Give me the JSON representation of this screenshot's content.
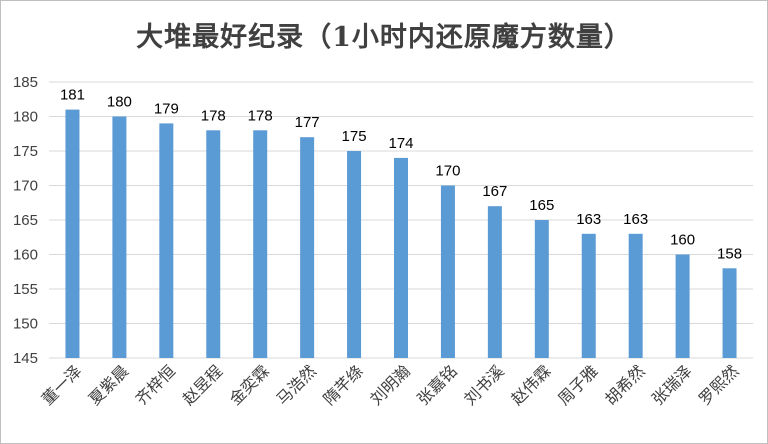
{
  "chart_data": {
    "type": "bar",
    "title": "大堆最好纪录（1小时内还原魔方数量）",
    "categories": [
      "董一泽",
      "夏紫晨",
      "齐梓恒",
      "赵昱程",
      "金奕霖",
      "马浩然",
      "隋芊绦",
      "刘明瀚",
      "张嘉铭",
      "刘书溪",
      "赵伟霖",
      "周子雅",
      "胡希然",
      "张瑞泽",
      "罗熙然"
    ],
    "values": [
      181,
      180,
      179,
      178,
      178,
      177,
      175,
      174,
      170,
      167,
      165,
      163,
      163,
      160,
      158
    ],
    "ylim": [
      145,
      185
    ],
    "yticks": [
      145,
      150,
      155,
      160,
      165,
      170,
      175,
      180,
      185
    ],
    "xlabel": "",
    "ylabel": "",
    "grid": true,
    "bar_color": "#5b9bd5",
    "grid_color": "#d9d9d9"
  }
}
